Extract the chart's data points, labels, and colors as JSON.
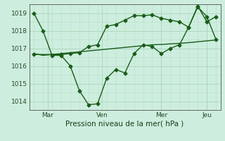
{
  "background_color": "#cdeede",
  "grid_color": "#b0d8c0",
  "line_color": "#1a5c1a",
  "title": "Pression niveau de la mer( hPa )",
  "ylim": [
    1013.5,
    1019.5
  ],
  "yticks": [
    1014,
    1015,
    1016,
    1017,
    1018,
    1019
  ],
  "x_labels": [
    "Mar",
    "Ven",
    "Mer",
    "Jeu"
  ],
  "series1_x": [
    0,
    1,
    2,
    3,
    4,
    5,
    6,
    7,
    8,
    9,
    10,
    11,
    12,
    13,
    14,
    15,
    16,
    17,
    18,
    19,
    20
  ],
  "series1_y": [
    1019.0,
    1018.0,
    1016.6,
    1016.6,
    1016.0,
    1014.6,
    1013.8,
    1013.85,
    1015.3,
    1015.8,
    1015.6,
    1016.7,
    1017.2,
    1017.1,
    1016.7,
    1017.0,
    1017.2,
    1018.2,
    1019.4,
    1018.5,
    1018.8
  ],
  "series2_x": [
    0,
    1,
    2,
    3,
    4,
    5,
    6,
    7,
    8,
    9,
    10,
    11,
    12,
    13,
    14,
    15,
    16,
    17,
    18,
    19,
    20
  ],
  "series2_y": [
    1016.7,
    1016.6,
    1016.65,
    1016.7,
    1016.75,
    1016.8,
    1016.85,
    1016.9,
    1016.95,
    1017.0,
    1017.05,
    1017.1,
    1017.15,
    1017.2,
    1017.22,
    1017.25,
    1017.28,
    1017.32,
    1017.37,
    1017.42,
    1017.47
  ],
  "series3_x": [
    0,
    3,
    4,
    5,
    6,
    7,
    8,
    9,
    10,
    11,
    12,
    13,
    14,
    15,
    16,
    17,
    18,
    19,
    20
  ],
  "series3_y": [
    1016.65,
    1016.65,
    1016.7,
    1016.75,
    1017.1,
    1017.2,
    1018.25,
    1018.35,
    1018.6,
    1018.85,
    1018.85,
    1018.9,
    1018.7,
    1018.6,
    1018.5,
    1018.2,
    1019.35,
    1018.8,
    1017.5
  ]
}
